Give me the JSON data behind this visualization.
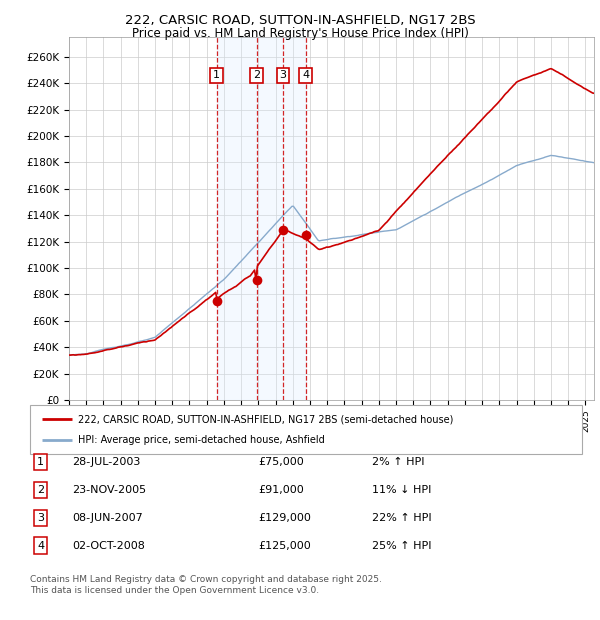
{
  "title": "222, CARSIC ROAD, SUTTON-IN-ASHFIELD, NG17 2BS",
  "subtitle": "Price paid vs. HM Land Registry's House Price Index (HPI)",
  "ylim": [
    0,
    275000
  ],
  "yticks": [
    0,
    20000,
    40000,
    60000,
    80000,
    100000,
    120000,
    140000,
    160000,
    180000,
    200000,
    220000,
    240000,
    260000
  ],
  "ytick_labels": [
    "£0",
    "£20K",
    "£40K",
    "£60K",
    "£80K",
    "£100K",
    "£120K",
    "£140K",
    "£160K",
    "£180K",
    "£200K",
    "£220K",
    "£240K",
    "£260K"
  ],
  "line_color_red": "#cc0000",
  "line_color_blue": "#88aacc",
  "transactions": [
    {
      "num": 1,
      "date": "28-JUL-2003",
      "price": 75000,
      "pct": "2%",
      "dir": "↑",
      "year": 2003.57
    },
    {
      "num": 2,
      "date": "23-NOV-2005",
      "price": 91000,
      "pct": "11%",
      "dir": "↓",
      "year": 2005.9
    },
    {
      "num": 3,
      "date": "08-JUN-2007",
      "price": 129000,
      "pct": "22%",
      "dir": "↑",
      "year": 2007.44
    },
    {
      "num": 4,
      "date": "02-OCT-2008",
      "price": 125000,
      "pct": "25%",
      "dir": "↑",
      "year": 2008.75
    }
  ],
  "legend_line1": "222, CARSIC ROAD, SUTTON-IN-ASHFIELD, NG17 2BS (semi-detached house)",
  "legend_line2": "HPI: Average price, semi-detached house, Ashfield",
  "footnote": "Contains HM Land Registry data © Crown copyright and database right 2025.\nThis data is licensed under the Open Government Licence v3.0.",
  "background_color": "#ffffff",
  "grid_color": "#cccccc",
  "shade_color": "#ddeeff",
  "transaction_box_color": "#cc0000",
  "xlim_left": 1995,
  "xlim_right": 2025.5
}
